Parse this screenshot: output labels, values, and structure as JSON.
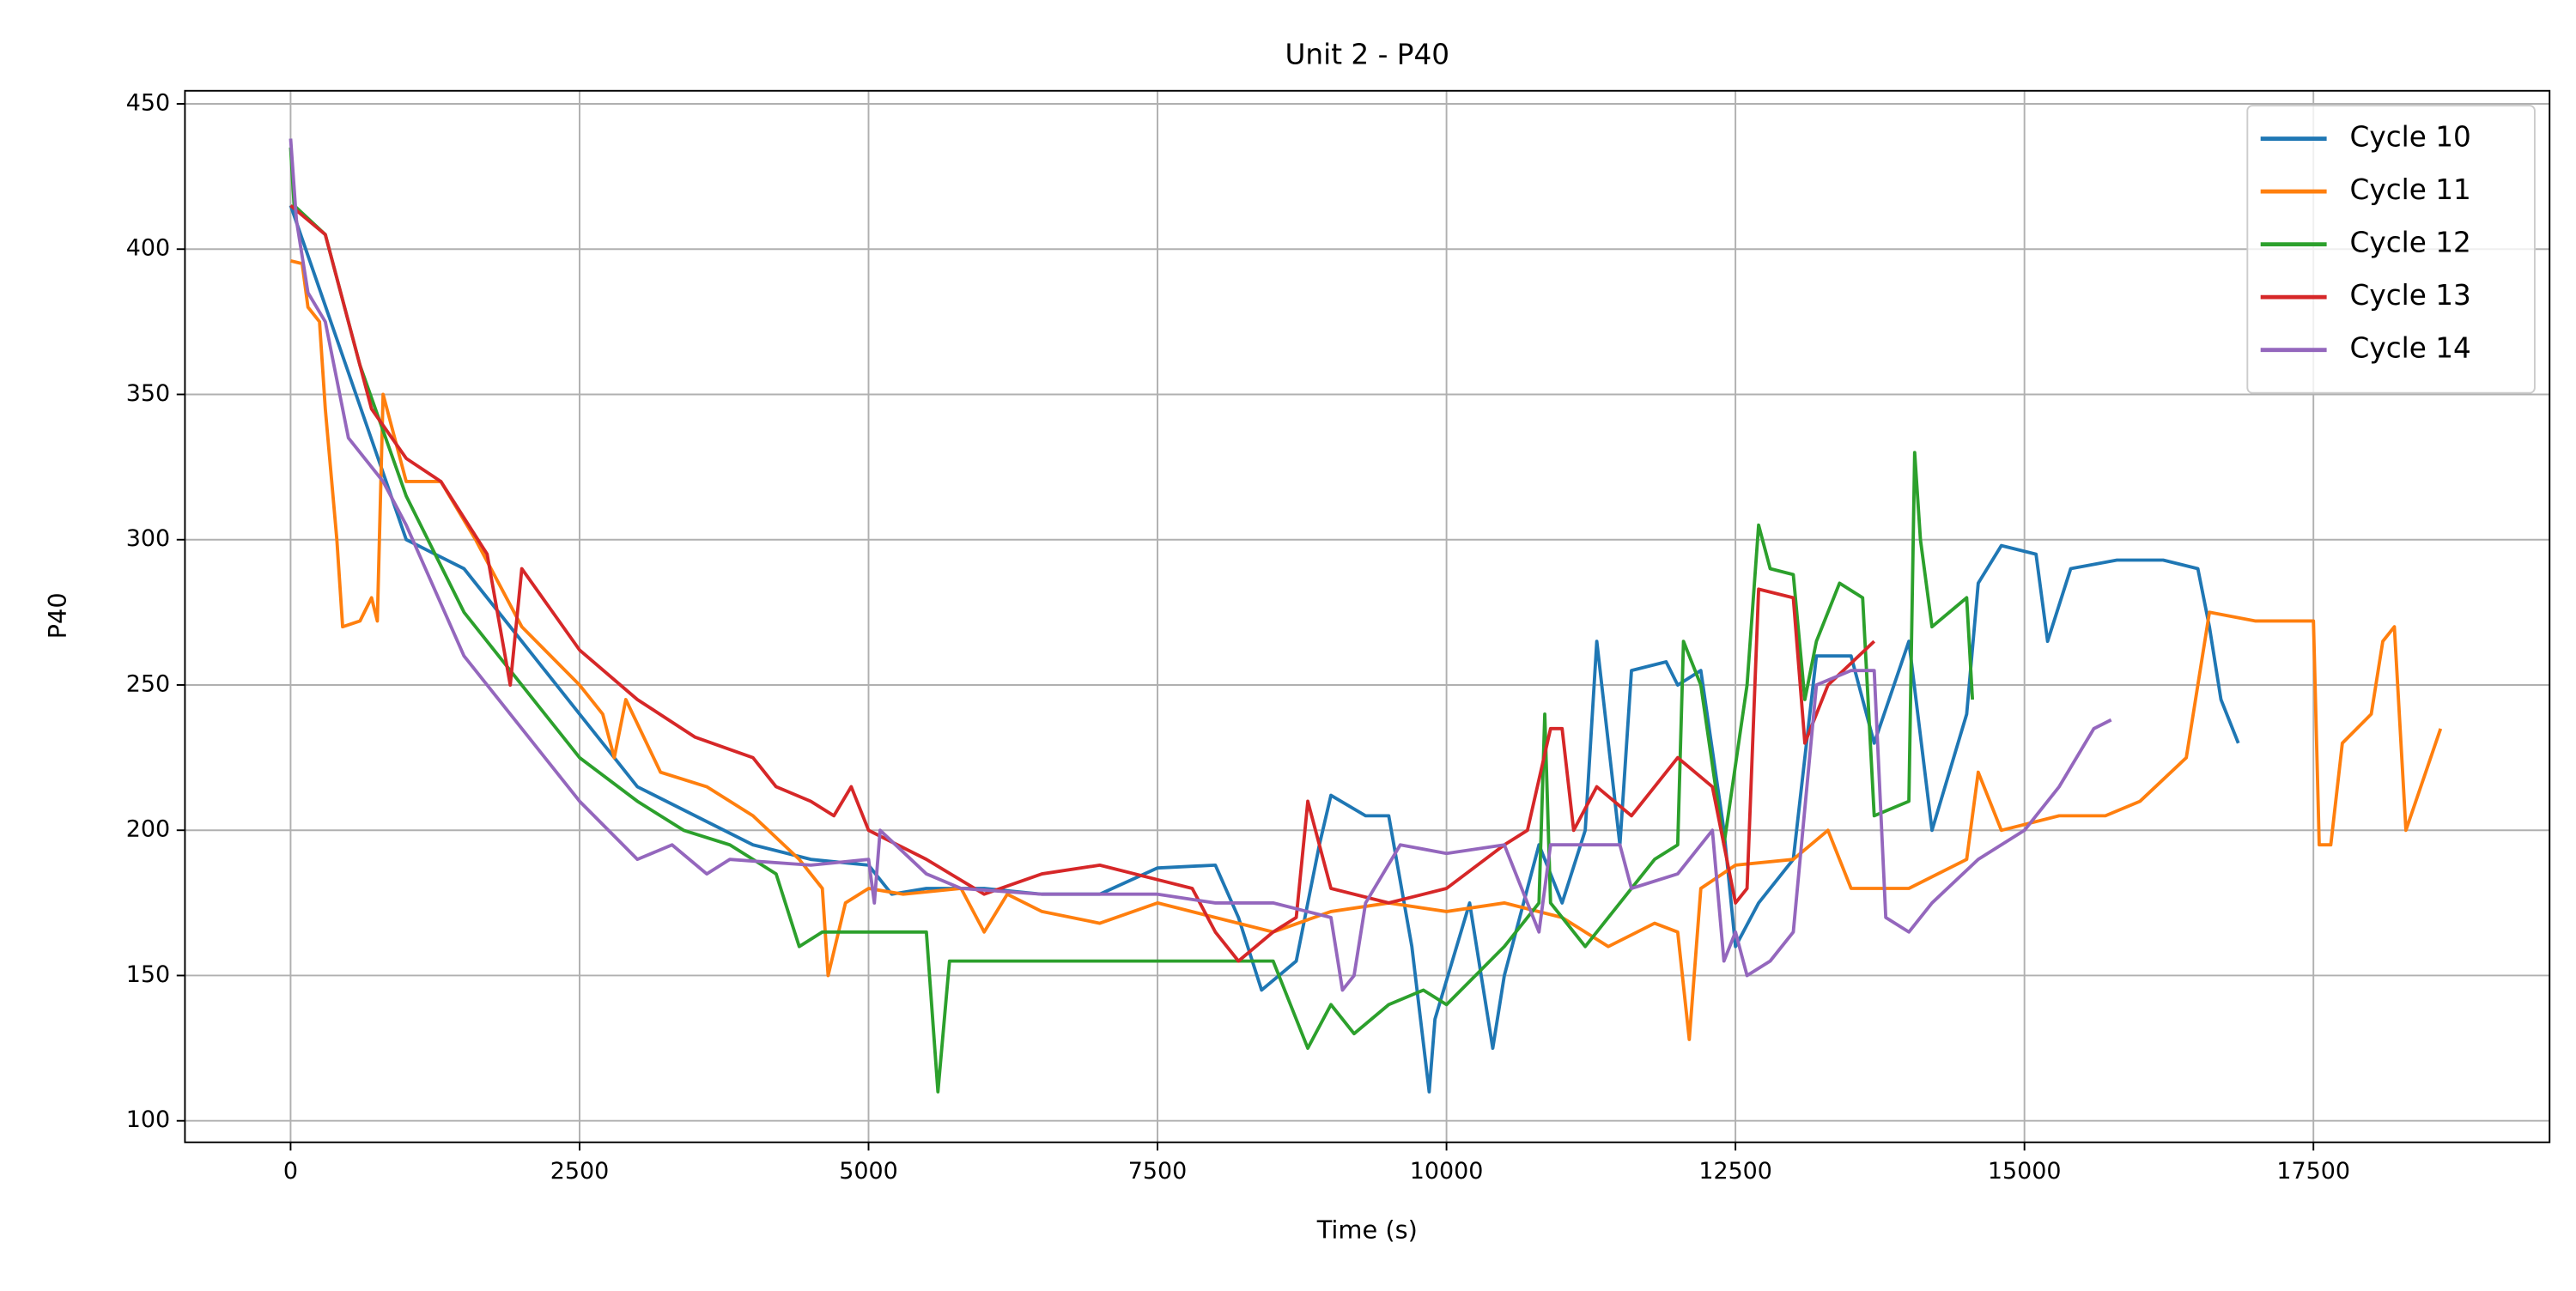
{
  "chart_data": {
    "type": "line",
    "title": "Unit 2 - P40",
    "x_label": "Time (s)",
    "y_label": "P40",
    "xlim": [
      -914,
      19543
    ],
    "ylim": [
      92.6,
      454.5
    ],
    "xticks": [
      0,
      2500,
      5000,
      7500,
      10000,
      12500,
      15000,
      17500
    ],
    "yticks": [
      100,
      150,
      200,
      250,
      300,
      350,
      400,
      450
    ],
    "grid": true,
    "legend": "upper right",
    "series": [
      {
        "name": "Cycle 10",
        "color": "#1f77b4",
        "x": [
          0,
          1000,
          1500,
          2000,
          2500,
          3000,
          3500,
          4000,
          4500,
          5000,
          5200,
          5500,
          6000,
          6500,
          7000,
          7500,
          8000,
          8200,
          8400,
          8700,
          8900,
          9000,
          9300,
          9500,
          9700,
          9850,
          9900,
          10200,
          10400,
          10500,
          10800,
          11000,
          11200,
          11300,
          11500,
          11600,
          11900,
          12000,
          12200,
          12400,
          12500,
          12700,
          13000,
          13200,
          13500,
          13700,
          14000,
          14200,
          14500,
          14600,
          14800,
          15100,
          15200,
          15400,
          15800,
          16200,
          16500,
          16600,
          16700,
          16850
        ],
        "values": [
          415,
          300,
          290,
          265,
          240,
          215,
          205,
          195,
          190,
          188,
          178,
          180,
          180,
          178,
          178,
          187,
          188,
          170,
          145,
          155,
          195,
          212,
          205,
          205,
          160,
          110,
          135,
          175,
          125,
          150,
          195,
          175,
          200,
          265,
          195,
          255,
          258,
          250,
          255,
          200,
          160,
          175,
          190,
          260,
          260,
          230,
          265,
          200,
          240,
          285,
          298,
          295,
          265,
          290,
          293,
          293,
          290,
          270,
          245,
          230
        ]
      },
      {
        "name": "Cycle 11",
        "color": "#ff7f0e",
        "x": [
          0,
          100,
          150,
          250,
          300,
          400,
          450,
          600,
          700,
          750,
          800,
          1000,
          1300,
          1600,
          2000,
          2500,
          2700,
          2800,
          2900,
          3200,
          3600,
          4000,
          4400,
          4600,
          4650,
          4800,
          5000,
          5300,
          5800,
          6000,
          6200,
          6500,
          7000,
          7500,
          8000,
          8500,
          9000,
          9500,
          10000,
          10500,
          11000,
          11400,
          11800,
          12000,
          12100,
          12200,
          12500,
          13000,
          13300,
          13500,
          14000,
          14500,
          14600,
          14800,
          15300,
          15700,
          16000,
          16400,
          16600,
          17000,
          17500,
          17550,
          17650,
          17750,
          18000,
          18100,
          18200,
          18300,
          18600
        ],
        "values": [
          396,
          395,
          380,
          375,
          345,
          300,
          270,
          272,
          280,
          272,
          350,
          320,
          320,
          300,
          270,
          250,
          240,
          225,
          245,
          220,
          215,
          205,
          190,
          180,
          150,
          175,
          180,
          178,
          180,
          165,
          178,
          172,
          168,
          175,
          170,
          165,
          172,
          175,
          172,
          175,
          170,
          160,
          168,
          165,
          128,
          180,
          188,
          190,
          200,
          180,
          180,
          190,
          220,
          200,
          205,
          205,
          210,
          225,
          275,
          272,
          272,
          195,
          195,
          230,
          240,
          265,
          270,
          200,
          235
        ]
      },
      {
        "name": "Cycle 12",
        "color": "#2ca02c",
        "x": [
          0,
          30,
          300,
          600,
          1000,
          1500,
          2000,
          2500,
          3000,
          3400,
          3800,
          4200,
          4400,
          4600,
          5000,
          5500,
          5600,
          5700,
          6000,
          6500,
          7000,
          7500,
          8000,
          8500,
          8800,
          9000,
          9200,
          9500,
          9800,
          10000,
          10500,
          10800,
          10850,
          10900,
          11000,
          11200,
          11500,
          11800,
          12000,
          12050,
          12200,
          12400,
          12600,
          12700,
          12800,
          13000,
          13100,
          13200,
          13400,
          13600,
          13700,
          14000,
          14050,
          14100,
          14200,
          14500,
          14550
        ],
        "values": [
          435,
          415,
          405,
          360,
          315,
          275,
          250,
          225,
          210,
          200,
          195,
          185,
          160,
          165,
          165,
          165,
          110,
          155,
          155,
          155,
          155,
          155,
          155,
          155,
          125,
          140,
          130,
          140,
          145,
          140,
          160,
          175,
          240,
          175,
          170,
          160,
          175,
          190,
          195,
          265,
          250,
          195,
          250,
          305,
          290,
          288,
          245,
          265,
          285,
          280,
          205,
          210,
          330,
          300,
          270,
          280,
          245
        ]
      },
      {
        "name": "Cycle 13",
        "color": "#d62728",
        "x": [
          0,
          300,
          700,
          1000,
          1300,
          1700,
          1900,
          2000,
          2500,
          3000,
          3500,
          4000,
          4200,
          4500,
          4700,
          4850,
          5000,
          5500,
          6000,
          6500,
          7000,
          7500,
          7800,
          8000,
          8200,
          8500,
          8700,
          8800,
          9000,
          9500,
          10000,
          10500,
          10700,
          10900,
          11000,
          11100,
          11300,
          11600,
          11800,
          12000,
          12300,
          12500,
          12600,
          12700,
          13000,
          13100,
          13300,
          13700
        ],
        "values": [
          415,
          405,
          345,
          328,
          320,
          295,
          250,
          290,
          262,
          245,
          232,
          225,
          215,
          210,
          205,
          215,
          200,
          190,
          178,
          185,
          188,
          183,
          180,
          165,
          155,
          165,
          170,
          210,
          180,
          175,
          180,
          195,
          200,
          235,
          235,
          200,
          215,
          205,
          215,
          225,
          215,
          175,
          180,
          283,
          280,
          230,
          250,
          265
        ]
      },
      {
        "name": "Cycle 14",
        "color": "#9467bd",
        "x": [
          0,
          50,
          150,
          300,
          500,
          800,
          1000,
          1500,
          2000,
          2500,
          3000,
          3300,
          3600,
          3800,
          4500,
          5000,
          5050,
          5100,
          5500,
          5800,
          6500,
          7000,
          7500,
          8000,
          8500,
          9000,
          9100,
          9200,
          9300,
          9600,
          10000,
          10500,
          10800,
          10900,
          11500,
          11600,
          12000,
          12300,
          12400,
          12500,
          12600,
          12800,
          13000,
          13200,
          13500,
          13700,
          13800,
          14000,
          14200,
          14600,
          15000,
          15300,
          15600,
          15750
        ],
        "values": [
          438,
          410,
          385,
          375,
          335,
          320,
          305,
          260,
          235,
          210,
          190,
          195,
          185,
          190,
          188,
          190,
          175,
          200,
          185,
          180,
          178,
          178,
          178,
          175,
          175,
          170,
          145,
          150,
          175,
          195,
          192,
          195,
          165,
          195,
          195,
          180,
          185,
          200,
          155,
          165,
          150,
          155,
          165,
          250,
          255,
          255,
          170,
          165,
          175,
          190,
          200,
          215,
          235,
          238
        ]
      }
    ]
  }
}
